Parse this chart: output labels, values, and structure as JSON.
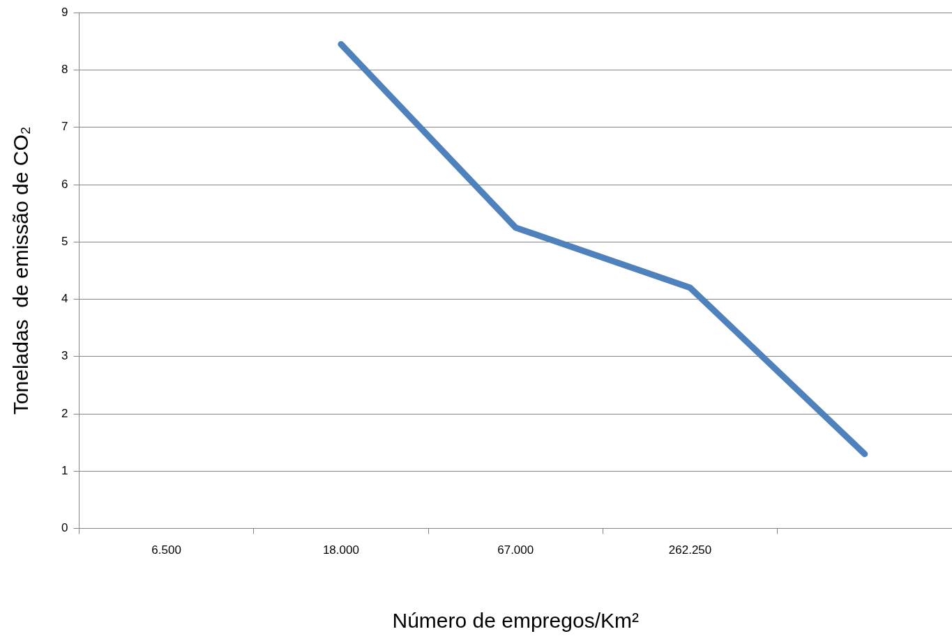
{
  "chart_data": {
    "type": "line",
    "xlabel": "Número de empregos/Km²",
    "ylabel": "Toneladas  de emissão de CO₂",
    "categories": [
      "6.500",
      "18.000",
      "67.000",
      "262.250",
      null
    ],
    "values": [
      null,
      8.45,
      5.25,
      4.2,
      1.3
    ],
    "color": "#4f81bd",
    "ylim": [
      0,
      9
    ],
    "yticks": [
      0,
      1,
      2,
      3,
      4,
      5,
      6,
      7,
      8,
      9
    ],
    "grid": "y",
    "legend": false
  }
}
